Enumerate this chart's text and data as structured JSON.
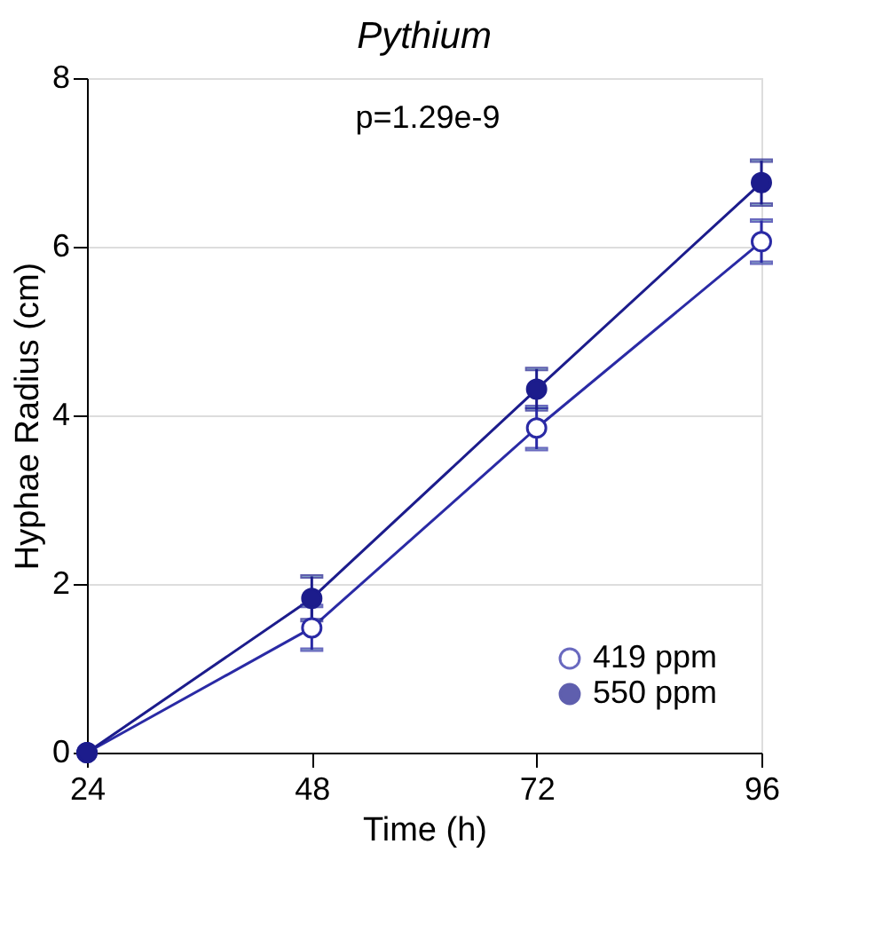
{
  "chart_data": {
    "type": "line",
    "title": "Pythium",
    "xlabel": "Time (h)",
    "ylabel": "Hyphae Radius (cm)",
    "x": [
      24,
      48,
      72,
      96
    ],
    "series": [
      {
        "name": "419 ppm",
        "color": "#2a2aa5",
        "values": [
          0,
          1.48,
          3.85,
          6.06
        ],
        "errors": [
          null,
          0.26,
          0.25,
          0.25
        ]
      },
      {
        "name": "550 ppm",
        "color": "#1c1c8c",
        "values": [
          0,
          1.83,
          4.31,
          6.76
        ],
        "errors": [
          null,
          0.26,
          0.24,
          0.26
        ]
      }
    ],
    "xlim": [
      24,
      96
    ],
    "xticks": [
      24,
      48,
      72,
      96
    ],
    "ylim": [
      0,
      8
    ],
    "yticks": [
      0,
      2,
      4,
      6,
      8
    ],
    "annotations": [
      "p=1.29e-9"
    ],
    "grid": "y",
    "legend": "bottom right",
    "marker": "circle",
    "line_style": "solid"
  }
}
